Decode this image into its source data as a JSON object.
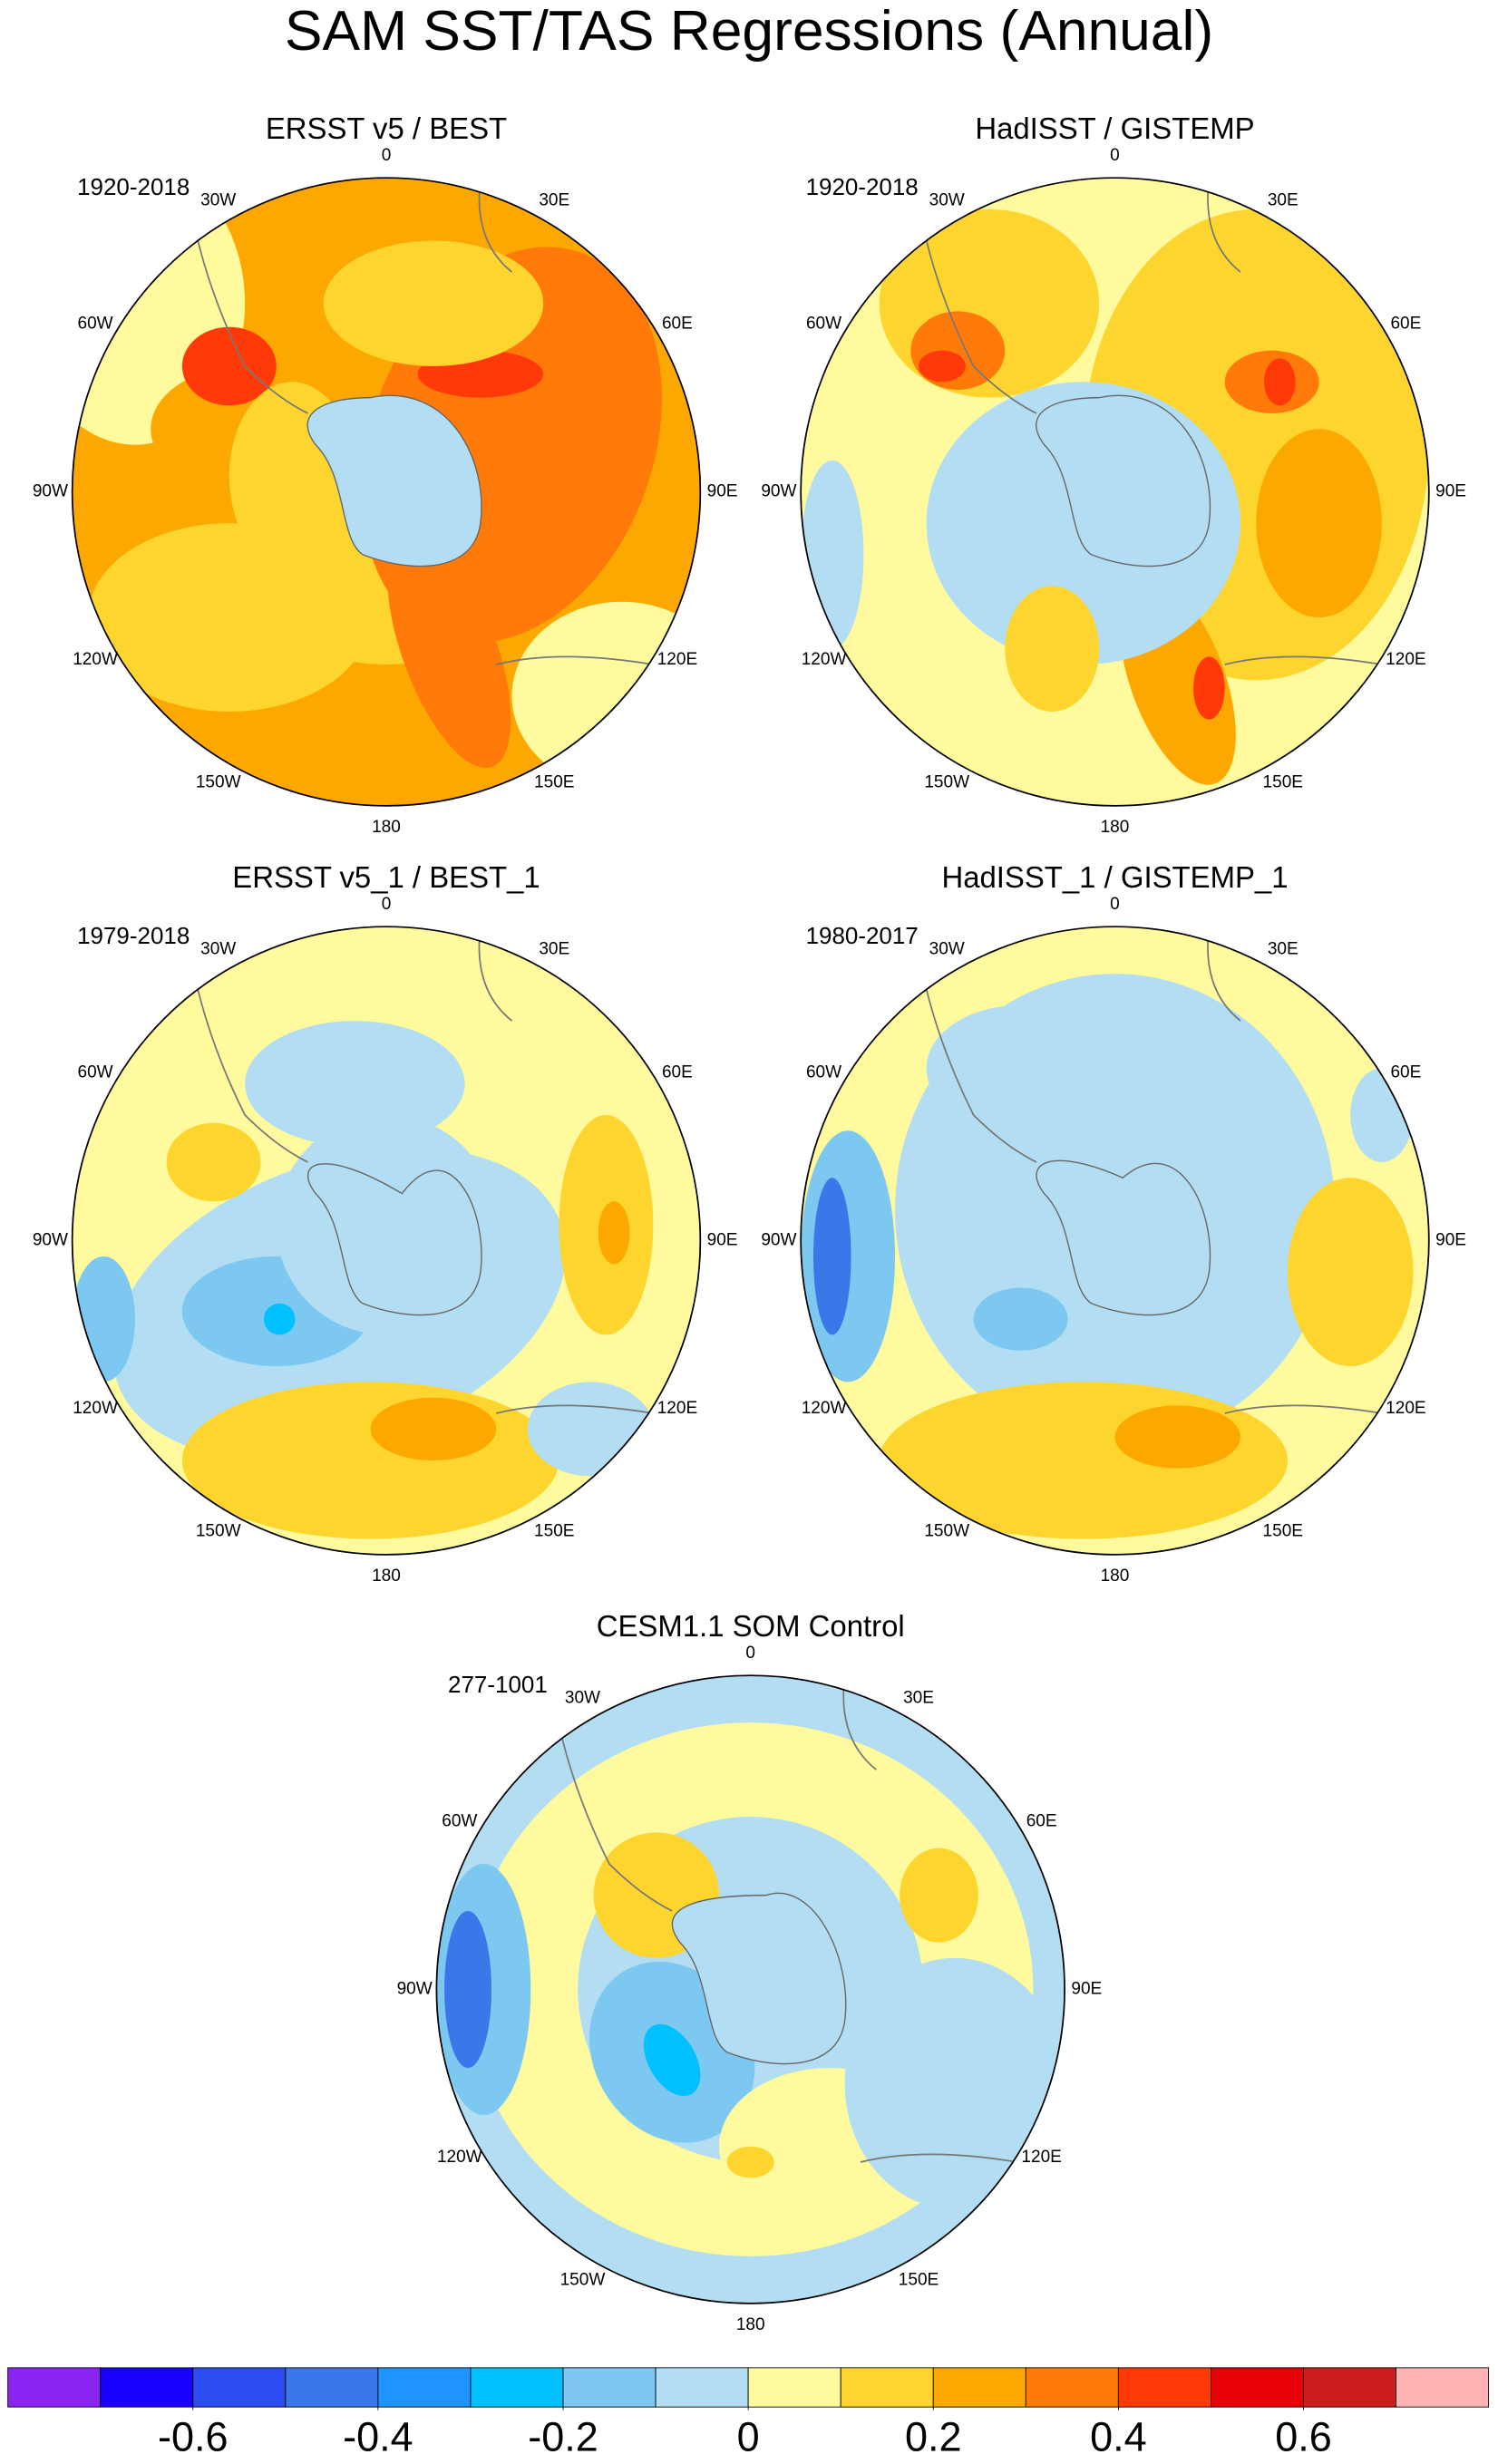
{
  "title": "SAM SST/TAS Regressions (Annual)",
  "panels": [
    {
      "title": "ERSST v5 / BEST",
      "period": "1920-2018"
    },
    {
      "title": "HadISST / GISTEMP",
      "period": "1920-2018"
    },
    {
      "title": "ERSST v5_1 / BEST_1",
      "period": "1979-2018"
    },
    {
      "title": "HadISST_1 / GISTEMP_1",
      "period": "1980-2017"
    },
    {
      "title": "CESM1.1 SOM Control",
      "period": "277-1001"
    }
  ],
  "longitude_labels": [
    "0",
    "30E",
    "60E",
    "90E",
    "120E",
    "150E",
    "180",
    "150W",
    "120W",
    "90W",
    "60W",
    "30W"
  ],
  "colorbar": {
    "colors": [
      "#8a24f0",
      "#1a00ff",
      "#2c4cf0",
      "#3a78ea",
      "#1e94ff",
      "#00c0ff",
      "#7cc8f0",
      "#b2ddf2",
      "#fffa9e",
      "#fdd52e",
      "#fda800",
      "#ff7a08",
      "#ff3a08",
      "#e80008",
      "#cc1e1e",
      "#ffb3b3"
    ],
    "lim": [
      -0.8,
      0.8
    ],
    "ticks": [
      -0.6,
      -0.4,
      -0.2,
      0,
      0.2,
      0.4,
      0.6
    ]
  }
}
